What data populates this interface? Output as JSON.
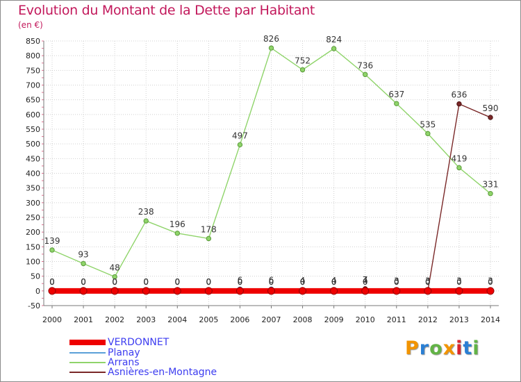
{
  "header": {
    "title": "Evolution du Montant de la Dette par Habitant",
    "unit": "(en €)"
  },
  "logo": {
    "text": "Proxiti",
    "colors": [
      "#f29400",
      "#2a7fd4",
      "#62b346",
      "#f29400",
      "#d8262f",
      "#2a7fd4",
      "#62b346"
    ]
  },
  "chart_data": {
    "type": "line",
    "title": "Evolution du Montant de la Dette par Habitant",
    "ylabel": "(en €)",
    "x": [
      "2000",
      "2001",
      "2002",
      "2003",
      "2004",
      "2005",
      "2006",
      "2007",
      "2008",
      "2009",
      "2010",
      "2011",
      "2012",
      "2013",
      "2014"
    ],
    "ylim": [
      -50,
      850
    ],
    "yticks": [
      -50,
      0,
      50,
      100,
      150,
      200,
      250,
      300,
      350,
      400,
      450,
      500,
      550,
      600,
      650,
      700,
      750,
      800,
      850
    ],
    "grid": true,
    "legend_position": "bottom-left",
    "series": [
      {
        "name": "VERDONNET",
        "color": "#ee0000",
        "values": [
          0,
          0,
          0,
          0,
          0,
          0,
          0,
          0,
          0,
          0,
          0,
          0,
          0,
          0,
          0
        ],
        "labels": [
          "0",
          "0",
          "0",
          "0",
          "0",
          "0",
          "0",
          "0",
          "0",
          "0",
          "0",
          "0",
          "0",
          "0",
          "0"
        ]
      },
      {
        "name": "Planay",
        "color": "#5aa0d8",
        "values": [
          0,
          0,
          0,
          0,
          0,
          0,
          6,
          6,
          4,
          4,
          4,
          3,
          3,
          3,
          3
        ],
        "labels": [
          "0",
          "0",
          "0",
          "0",
          "0",
          "0",
          "6",
          "6",
          "4",
          "4",
          "4",
          "3",
          "3",
          "3",
          "3"
        ]
      },
      {
        "name": "Arrans",
        "color": "#8fd46a",
        "values": [
          139,
          93,
          48,
          238,
          196,
          178,
          497,
          826,
          752,
          824,
          736,
          637,
          535,
          419,
          331
        ],
        "labels": [
          "139",
          "93",
          "48",
          "238",
          "196",
          "178",
          "497",
          "826",
          "752",
          "824",
          "736",
          "637",
          "535",
          "419",
          "331"
        ]
      },
      {
        "name": "Asnières-en-Montagne",
        "color": "#7a2828",
        "values": [
          0,
          0,
          0,
          0,
          0,
          0,
          0,
          0,
          0,
          0,
          7,
          0,
          0,
          636,
          590
        ],
        "labels": [
          "0",
          "0",
          "0",
          "0",
          "0",
          "0",
          "0",
          "0",
          "0",
          "0",
          "7",
          "0",
          "0",
          "636",
          "590"
        ]
      }
    ]
  }
}
